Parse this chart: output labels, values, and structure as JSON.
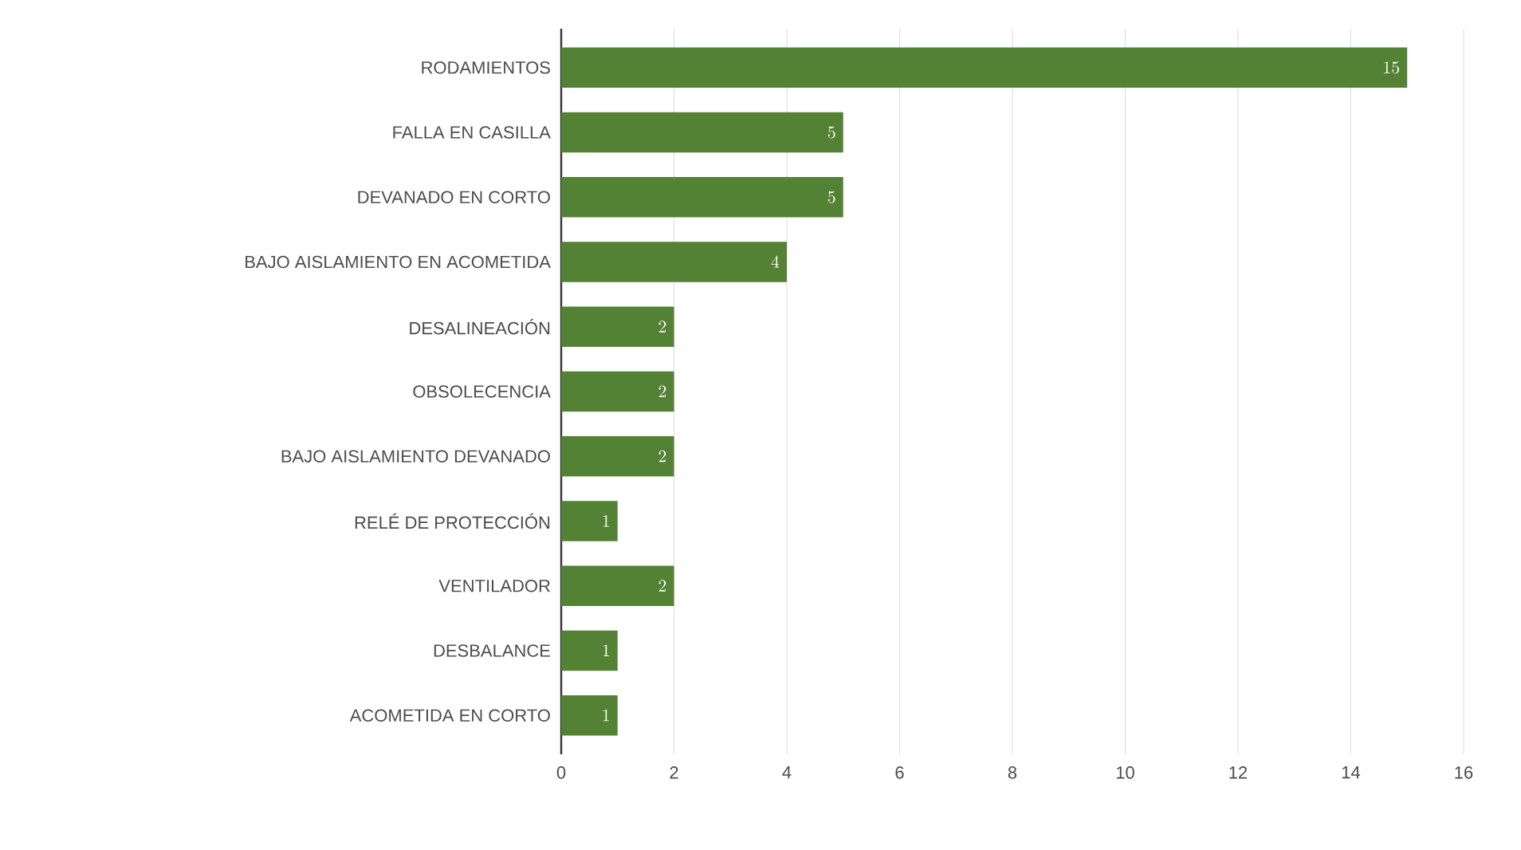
{
  "chart_data": {
    "type": "bar",
    "orientation": "horizontal",
    "categories": [
      "RODAMIENTOS",
      "FALLA EN CASILLA",
      "DEVANADO EN CORTO",
      "BAJO AISLAMIENTO EN ACOMETIDA",
      "DESALINEACIÓN",
      "OBSOLECENCIA",
      "BAJO AISLAMIENTO DEVANADO",
      "RELÉ DE PROTECCIÓN",
      "VENTILADOR",
      "DESBALANCE",
      "ACOMETIDA EN CORTO"
    ],
    "values": [
      15,
      5,
      5,
      4,
      2,
      2,
      2,
      1,
      2,
      1,
      1
    ],
    "color": "#548235",
    "data_labels": true,
    "grid": "x",
    "xlim": [
      0,
      16
    ],
    "xticks": [
      0,
      2,
      4,
      6,
      8,
      10,
      12,
      14,
      16
    ]
  }
}
